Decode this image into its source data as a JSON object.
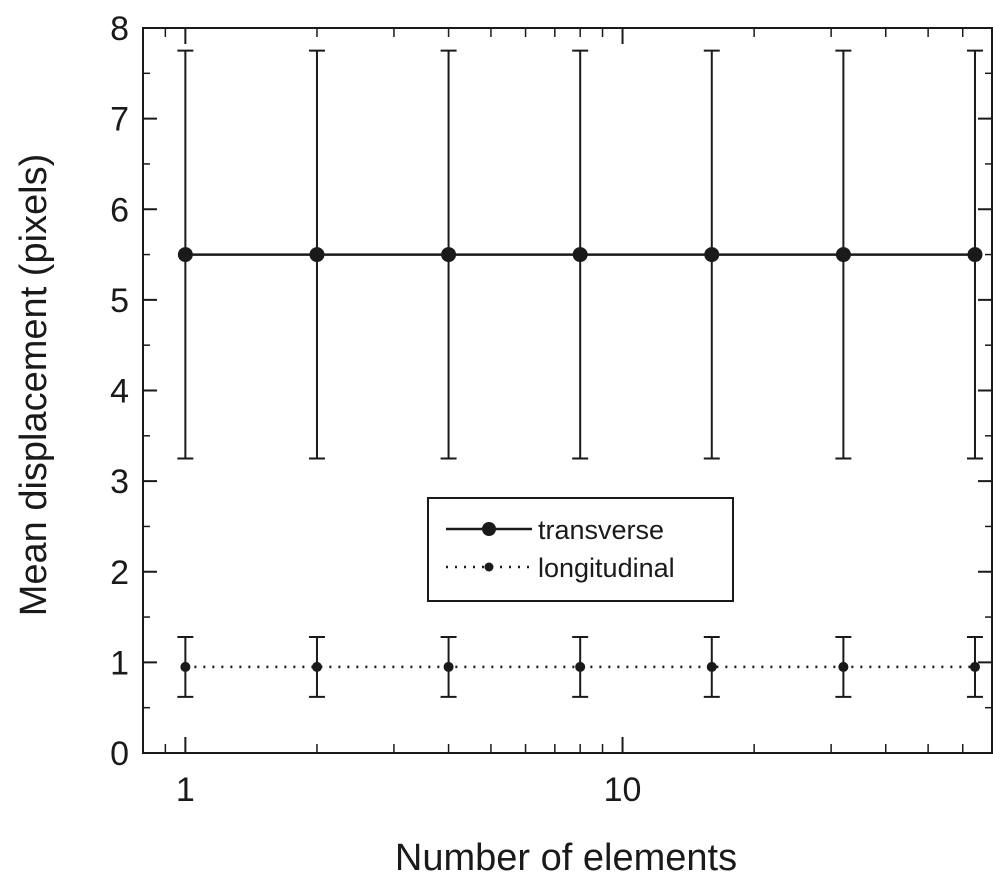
{
  "chart_data": {
    "type": "scatter",
    "title": "",
    "xlabel": "Number of elements",
    "ylabel": "Mean displacement (pixels)",
    "x_scale": "log",
    "xlim": [
      0.8,
      70
    ],
    "ylim": [
      0,
      8
    ],
    "x_ticks": [
      1,
      10
    ],
    "y_ticks": [
      0,
      1,
      2,
      3,
      4,
      5,
      6,
      7,
      8
    ],
    "grid": false,
    "legend": "center",
    "series": [
      {
        "name": "transverse",
        "line": "solid",
        "marker_size": "large",
        "color": "#1a1a1a",
        "x": [
          1,
          2,
          4,
          8,
          16,
          32,
          64
        ],
        "y": [
          5.5,
          5.5,
          5.5,
          5.5,
          5.5,
          5.5,
          5.5
        ],
        "error": [
          2.25,
          2.25,
          2.25,
          2.25,
          2.25,
          2.25,
          2.25
        ]
      },
      {
        "name": "longitudinal",
        "line": "dotted",
        "marker_size": "small",
        "color": "#1a1a1a",
        "x": [
          1,
          2,
          4,
          8,
          16,
          32,
          64
        ],
        "y": [
          0.95,
          0.95,
          0.95,
          0.95,
          0.95,
          0.95,
          0.95
        ],
        "error": [
          0.33,
          0.33,
          0.33,
          0.33,
          0.33,
          0.33,
          0.33
        ]
      }
    ]
  }
}
